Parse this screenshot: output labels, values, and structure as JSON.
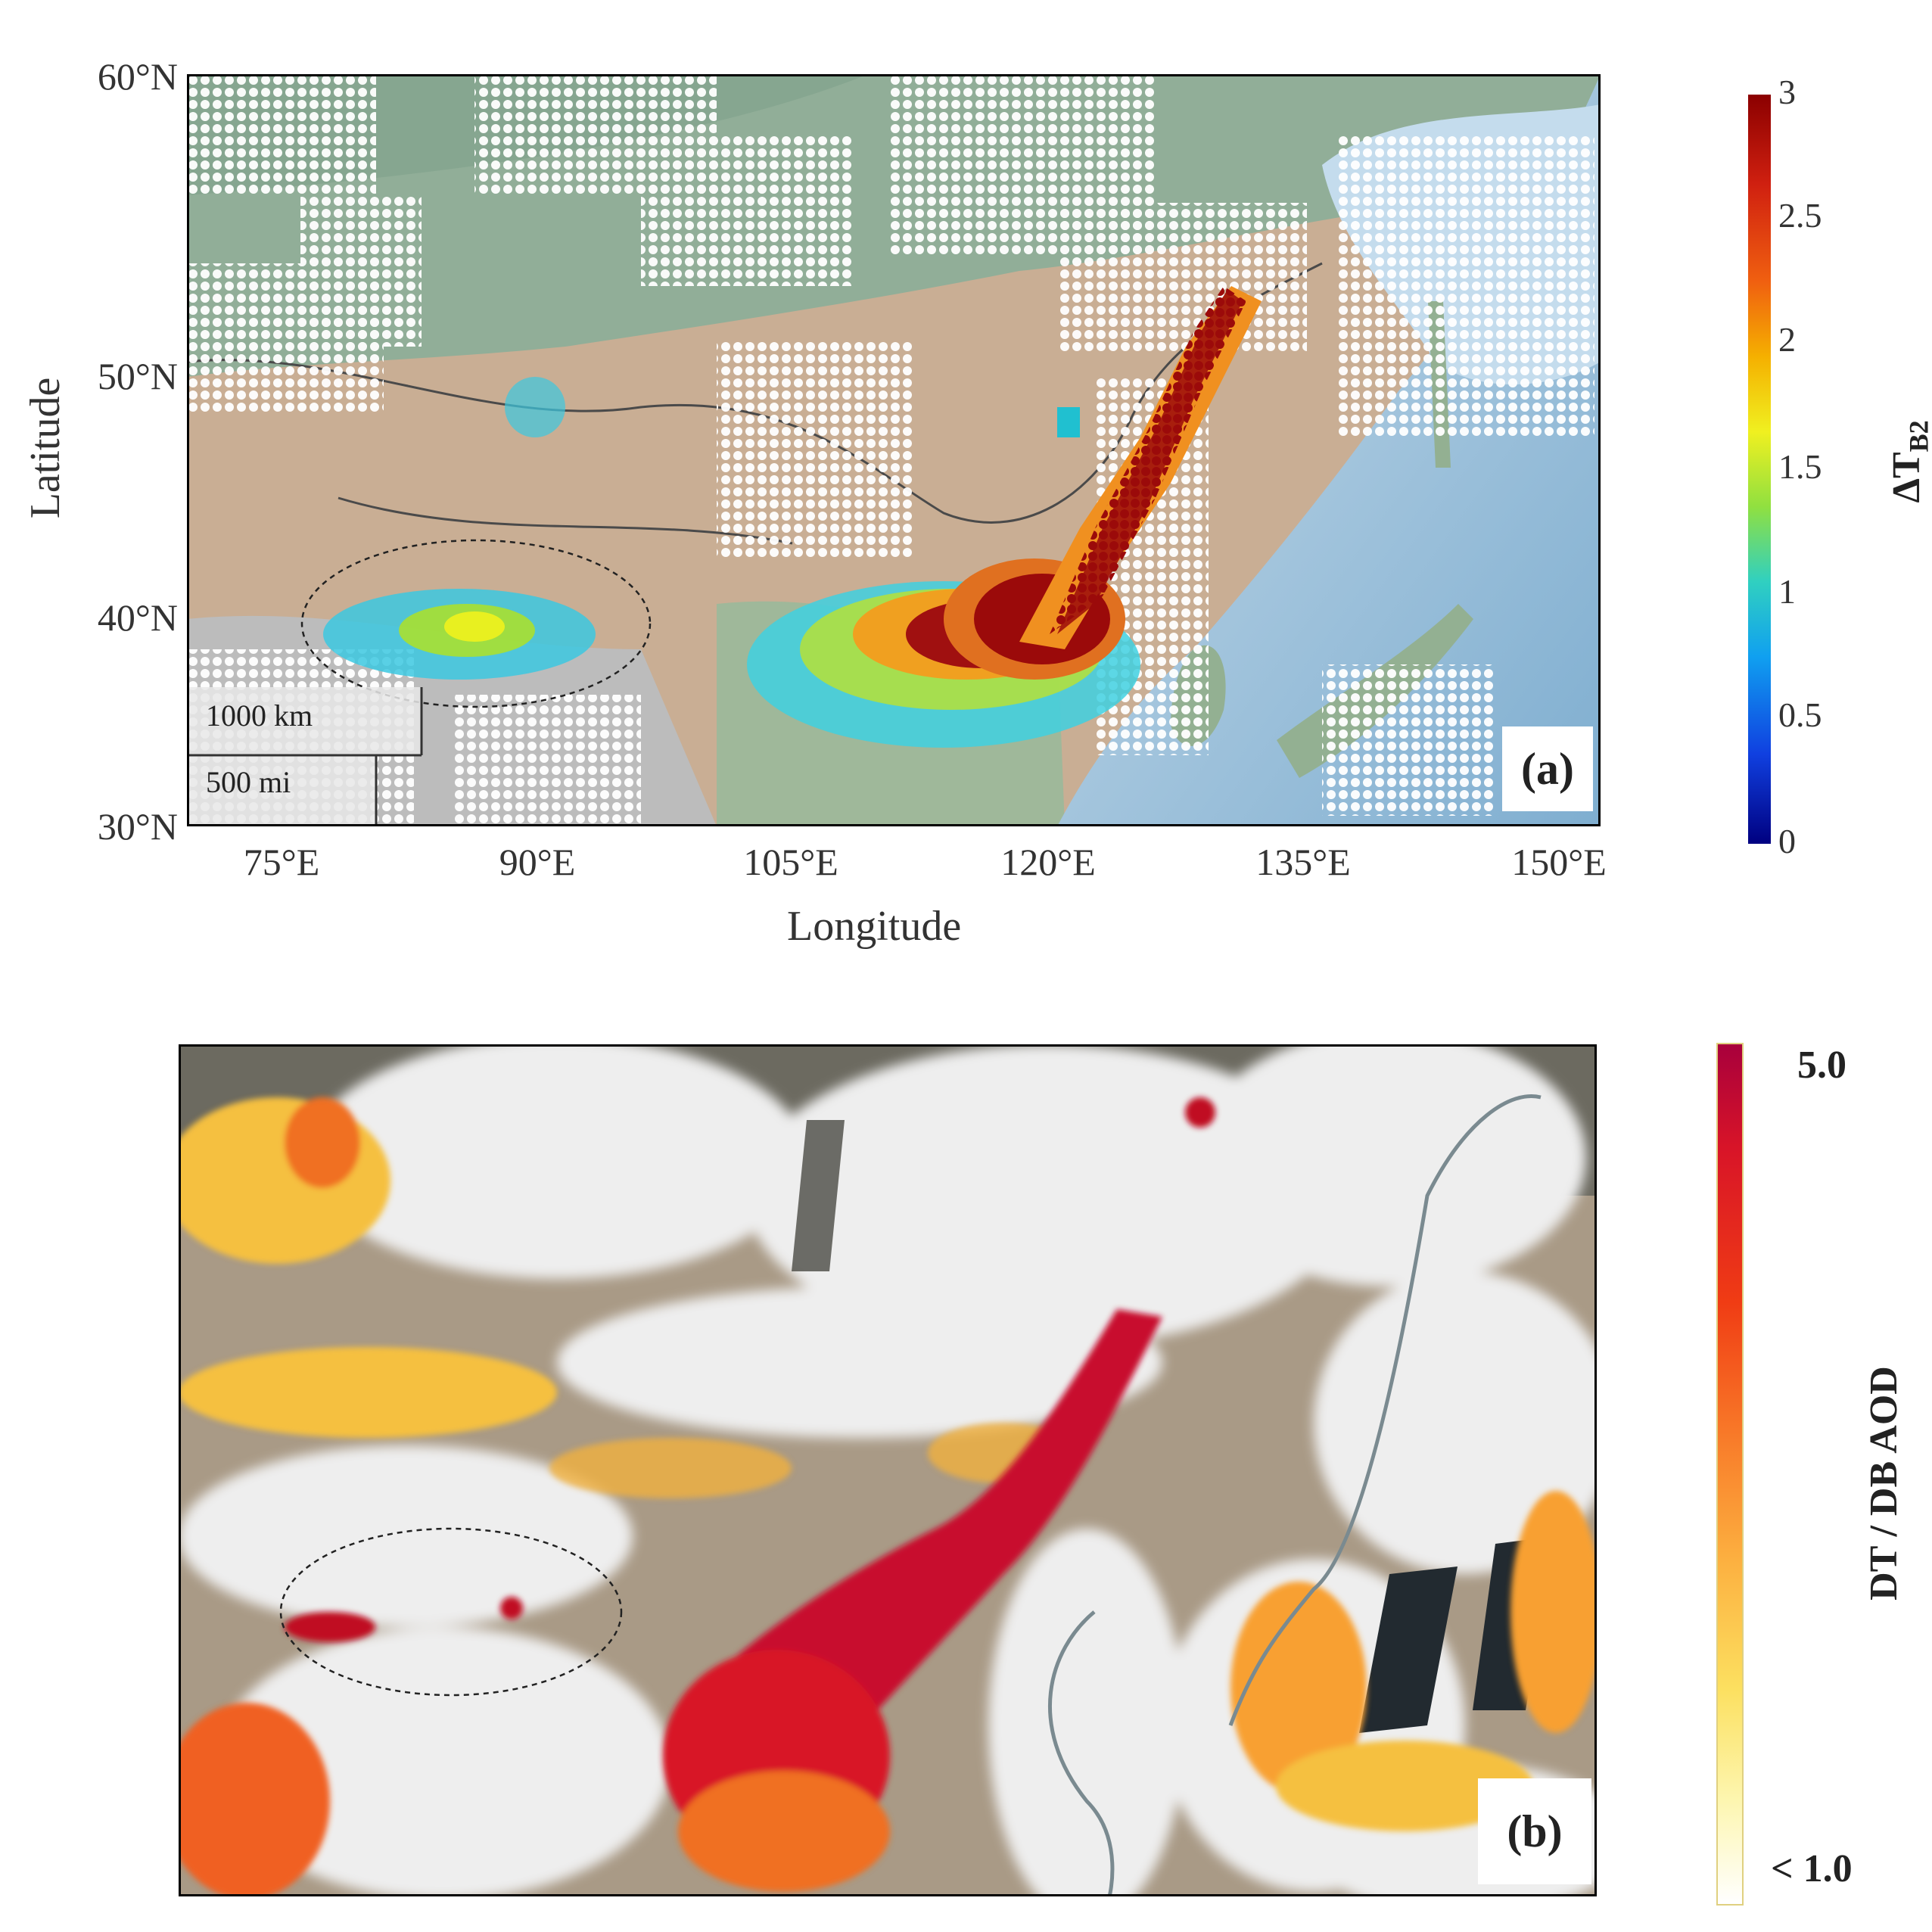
{
  "panel_a": {
    "tag": "(a)",
    "y_axis_title": "Latitude",
    "x_axis_title": "Longitude",
    "lat_ticks": [
      "60°N",
      "50°N",
      "40°N",
      "30°N"
    ],
    "lon_ticks": [
      "75°E",
      "90°E",
      "105°E",
      "120°E",
      "135°E",
      "150°E"
    ],
    "scale_bar": {
      "km": "1000 km",
      "mi": "500 mi"
    },
    "colorbar": {
      "title_main": "ΔT",
      "title_sub": "B2",
      "ticks": [
        "3",
        "2.5",
        "2",
        "1.5",
        "1",
        "0.5",
        "0"
      ],
      "colors": [
        "#8b0000",
        "#e03010",
        "#f5a000",
        "#f0f020",
        "#40e0a0",
        "#20b0f0",
        "#1030d0",
        "#000080"
      ]
    }
  },
  "panel_b": {
    "tag": "(b)",
    "colorbar": {
      "title": "DT / DB AOD",
      "max_label": "5.0",
      "min_label": "< 1.0",
      "colors": [
        "#a8003c",
        "#d81428",
        "#f03c14",
        "#f87828",
        "#fcb040",
        "#fce060",
        "#fdf6b0",
        "#ffffff"
      ]
    }
  },
  "colors": {
    "land": "#c7ad92",
    "sea": "#a9c9df",
    "forest": "#8fb09a",
    "white_pixels": "#ffffff",
    "dust_high": "#8b0000",
    "ellipse": "#222222"
  }
}
